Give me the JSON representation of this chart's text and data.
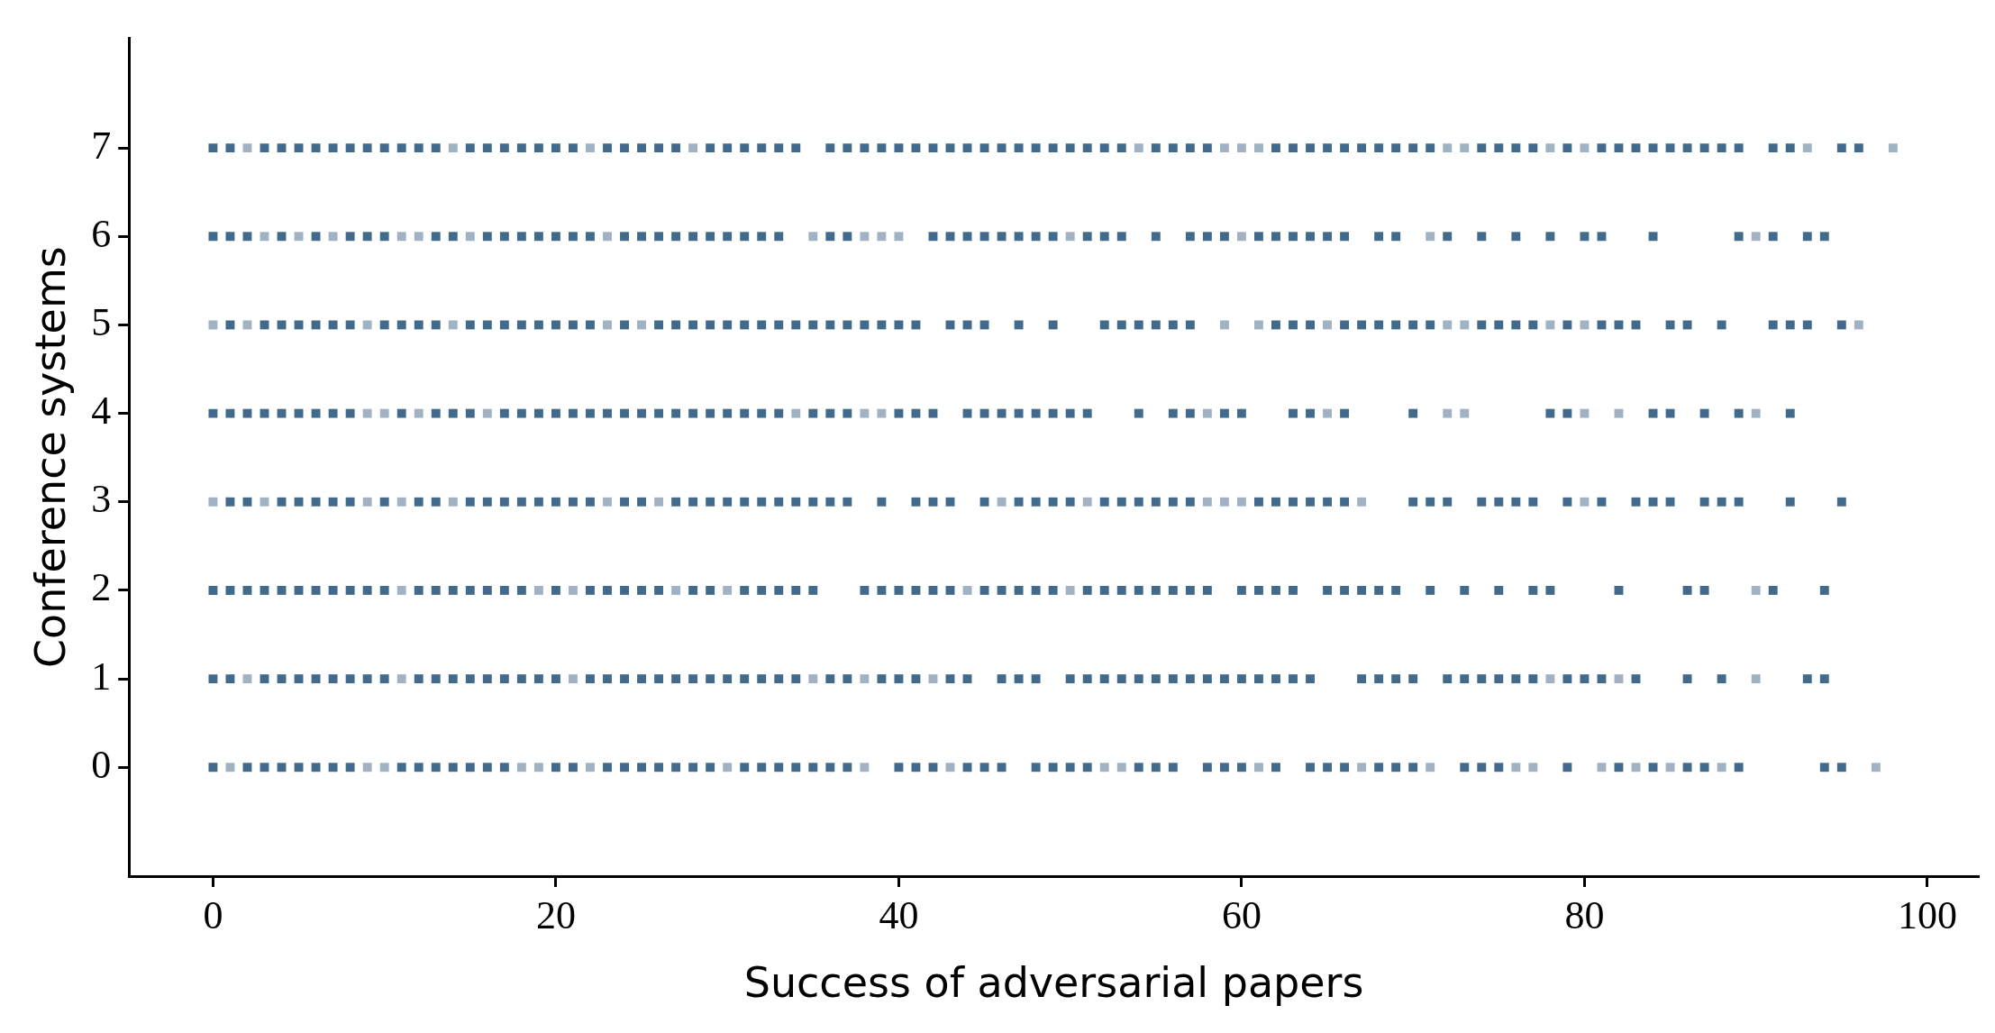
{
  "chart_data": {
    "type": "scatter",
    "xlabel": "Success of adversarial papers",
    "ylabel": "Conference systems",
    "xlim": [
      -4.9,
      103
    ],
    "xticks": [
      0,
      20,
      40,
      60,
      80,
      100
    ],
    "ylim": [
      -1.23,
      8.24
    ],
    "yticks": [
      0,
      1,
      2,
      3,
      4,
      5,
      6,
      7
    ],
    "grid": false,
    "legend": false,
    "marker": "square",
    "series": [
      {
        "color": "#426a8c",
        "x": [
          0,
          2,
          3,
          4,
          5,
          6,
          7,
          8,
          11,
          12,
          13,
          14,
          15,
          16,
          17,
          20,
          21,
          23,
          24,
          25,
          26,
          27,
          28,
          29,
          31,
          32,
          33,
          34,
          35,
          36,
          37,
          40,
          41,
          42,
          44,
          45,
          46,
          48,
          49,
          50,
          51,
          54,
          55,
          56,
          58,
          59,
          60,
          62,
          64,
          65,
          66,
          68,
          69,
          70,
          73,
          74,
          75,
          79,
          82,
          84,
          86,
          87,
          89,
          94,
          95
        ],
        "values": [
          0,
          0,
          0,
          0,
          0,
          0,
          0,
          0,
          0,
          0,
          0,
          0,
          0,
          0,
          0,
          0,
          0,
          0,
          0,
          0,
          0,
          0,
          0,
          0,
          0,
          0,
          0,
          0,
          0,
          0,
          0,
          0,
          0,
          0,
          0,
          0,
          0,
          0,
          0,
          0,
          0,
          0,
          0,
          0,
          0,
          0,
          0,
          0,
          0,
          0,
          0,
          0,
          0,
          0,
          0,
          0,
          0,
          0,
          0,
          0,
          0,
          0,
          0,
          0,
          0
        ]
      },
      {
        "color": "#a0b2c4",
        "x": [
          1,
          9,
          10,
          18,
          19,
          22,
          30,
          38,
          43,
          52,
          53,
          61,
          67,
          71,
          76,
          77,
          81,
          83,
          85,
          88,
          97
        ],
        "values": [
          0,
          0,
          0,
          0,
          0,
          0,
          0,
          0,
          0,
          0,
          0,
          0,
          0,
          0,
          0,
          0,
          0,
          0,
          0,
          0,
          0
        ]
      },
      {
        "color": "#426a8c",
        "x": [
          0,
          1,
          3,
          4,
          5,
          6,
          7,
          8,
          9,
          10,
          12,
          13,
          14,
          15,
          16,
          17,
          18,
          19,
          20,
          22,
          23,
          24,
          25,
          26,
          27,
          28,
          29,
          30,
          31,
          32,
          33,
          34,
          36,
          37,
          39,
          40,
          41,
          43,
          44,
          46,
          47,
          48,
          50,
          51,
          52,
          53,
          54,
          55,
          56,
          57,
          58,
          59,
          60,
          61,
          62,
          63,
          64,
          67,
          68,
          69,
          70,
          72,
          73,
          74,
          75,
          76,
          77,
          79,
          80,
          81,
          83,
          86,
          88,
          93,
          94
        ],
        "values": [
          1,
          1,
          1,
          1,
          1,
          1,
          1,
          1,
          1,
          1,
          1,
          1,
          1,
          1,
          1,
          1,
          1,
          1,
          1,
          1,
          1,
          1,
          1,
          1,
          1,
          1,
          1,
          1,
          1,
          1,
          1,
          1,
          1,
          1,
          1,
          1,
          1,
          1,
          1,
          1,
          1,
          1,
          1,
          1,
          1,
          1,
          1,
          1,
          1,
          1,
          1,
          1,
          1,
          1,
          1,
          1,
          1,
          1,
          1,
          1,
          1,
          1,
          1,
          1,
          1,
          1,
          1,
          1,
          1,
          1,
          1,
          1,
          1,
          1,
          1
        ]
      },
      {
        "color": "#a0b2c4",
        "x": [
          2,
          11,
          21,
          35,
          38,
          42,
          78,
          82,
          90
        ],
        "values": [
          1,
          1,
          1,
          1,
          1,
          1,
          1,
          1,
          1
        ]
      },
      {
        "color": "#426a8c",
        "x": [
          0,
          1,
          2,
          3,
          4,
          5,
          6,
          7,
          8,
          9,
          10,
          12,
          13,
          14,
          15,
          16,
          17,
          18,
          20,
          22,
          23,
          24,
          25,
          26,
          28,
          29,
          31,
          32,
          33,
          34,
          35,
          38,
          39,
          40,
          41,
          42,
          43,
          45,
          46,
          47,
          48,
          49,
          51,
          52,
          53,
          54,
          55,
          56,
          57,
          58,
          60,
          61,
          62,
          63,
          65,
          66,
          67,
          68,
          69,
          71,
          73,
          75,
          77,
          78,
          82,
          86,
          87,
          91,
          94
        ],
        "values": [
          2,
          2,
          2,
          2,
          2,
          2,
          2,
          2,
          2,
          2,
          2,
          2,
          2,
          2,
          2,
          2,
          2,
          2,
          2,
          2,
          2,
          2,
          2,
          2,
          2,
          2,
          2,
          2,
          2,
          2,
          2,
          2,
          2,
          2,
          2,
          2,
          2,
          2,
          2,
          2,
          2,
          2,
          2,
          2,
          2,
          2,
          2,
          2,
          2,
          2,
          2,
          2,
          2,
          2,
          2,
          2,
          2,
          2,
          2,
          2,
          2,
          2,
          2,
          2,
          2,
          2,
          2,
          2,
          2
        ]
      },
      {
        "color": "#a0b2c4",
        "x": [
          11,
          19,
          21,
          27,
          30,
          44,
          50,
          90
        ],
        "values": [
          2,
          2,
          2,
          2,
          2,
          2,
          2,
          2
        ]
      },
      {
        "color": "#426a8c",
        "x": [
          1,
          2,
          4,
          5,
          6,
          7,
          8,
          10,
          12,
          13,
          15,
          16,
          17,
          18,
          19,
          20,
          21,
          22,
          24,
          25,
          27,
          28,
          29,
          30,
          31,
          32,
          33,
          34,
          35,
          36,
          37,
          39,
          41,
          42,
          43,
          45,
          47,
          48,
          49,
          50,
          52,
          53,
          54,
          55,
          56,
          57,
          61,
          62,
          63,
          64,
          65,
          66,
          70,
          71,
          72,
          74,
          75,
          76,
          77,
          79,
          81,
          83,
          84,
          85,
          87,
          88,
          89,
          92,
          95
        ],
        "values": [
          3,
          3,
          3,
          3,
          3,
          3,
          3,
          3,
          3,
          3,
          3,
          3,
          3,
          3,
          3,
          3,
          3,
          3,
          3,
          3,
          3,
          3,
          3,
          3,
          3,
          3,
          3,
          3,
          3,
          3,
          3,
          3,
          3,
          3,
          3,
          3,
          3,
          3,
          3,
          3,
          3,
          3,
          3,
          3,
          3,
          3,
          3,
          3,
          3,
          3,
          3,
          3,
          3,
          3,
          3,
          3,
          3,
          3,
          3,
          3,
          3,
          3,
          3,
          3,
          3,
          3,
          3,
          3,
          3
        ]
      },
      {
        "color": "#a0b2c4",
        "x": [
          0,
          3,
          9,
          11,
          14,
          23,
          26,
          46,
          51,
          58,
          59,
          60,
          67,
          80
        ],
        "values": [
          3,
          3,
          3,
          3,
          3,
          3,
          3,
          3,
          3,
          3,
          3,
          3,
          3,
          3
        ]
      },
      {
        "color": "#426a8c",
        "x": [
          0,
          1,
          2,
          3,
          4,
          5,
          6,
          7,
          8,
          11,
          13,
          14,
          15,
          17,
          18,
          19,
          20,
          21,
          22,
          23,
          24,
          25,
          26,
          27,
          28,
          29,
          30,
          31,
          32,
          33,
          35,
          36,
          37,
          40,
          41,
          42,
          44,
          45,
          46,
          47,
          48,
          49,
          50,
          51,
          54,
          56,
          57,
          59,
          60,
          63,
          64,
          66,
          70,
          78,
          79,
          84,
          85,
          87,
          89,
          92
        ],
        "values": [
          4,
          4,
          4,
          4,
          4,
          4,
          4,
          4,
          4,
          4,
          4,
          4,
          4,
          4,
          4,
          4,
          4,
          4,
          4,
          4,
          4,
          4,
          4,
          4,
          4,
          4,
          4,
          4,
          4,
          4,
          4,
          4,
          4,
          4,
          4,
          4,
          4,
          4,
          4,
          4,
          4,
          4,
          4,
          4,
          4,
          4,
          4,
          4,
          4,
          4,
          4,
          4,
          4,
          4,
          4,
          4,
          4,
          4,
          4,
          4
        ]
      },
      {
        "color": "#a0b2c4",
        "x": [
          9,
          10,
          12,
          16,
          34,
          38,
          39,
          58,
          65,
          72,
          73,
          80,
          82,
          90
        ],
        "values": [
          4,
          4,
          4,
          4,
          4,
          4,
          4,
          4,
          4,
          4,
          4,
          4,
          4,
          4
        ]
      },
      {
        "color": "#426a8c",
        "x": [
          1,
          3,
          4,
          5,
          6,
          7,
          8,
          10,
          11,
          12,
          13,
          15,
          16,
          17,
          18,
          19,
          20,
          21,
          22,
          24,
          26,
          27,
          28,
          29,
          30,
          31,
          32,
          33,
          34,
          35,
          36,
          37,
          38,
          39,
          40,
          41,
          43,
          44,
          45,
          47,
          49,
          52,
          53,
          54,
          55,
          56,
          57,
          62,
          63,
          64,
          66,
          67,
          68,
          69,
          70,
          71,
          74,
          75,
          76,
          77,
          79,
          81,
          82,
          83,
          85,
          86,
          88,
          91,
          92,
          93,
          95
        ],
        "values": [
          5,
          5,
          5,
          5,
          5,
          5,
          5,
          5,
          5,
          5,
          5,
          5,
          5,
          5,
          5,
          5,
          5,
          5,
          5,
          5,
          5,
          5,
          5,
          5,
          5,
          5,
          5,
          5,
          5,
          5,
          5,
          5,
          5,
          5,
          5,
          5,
          5,
          5,
          5,
          5,
          5,
          5,
          5,
          5,
          5,
          5,
          5,
          5,
          5,
          5,
          5,
          5,
          5,
          5,
          5,
          5,
          5,
          5,
          5,
          5,
          5,
          5,
          5,
          5,
          5,
          5,
          5,
          5,
          5,
          5,
          5
        ]
      },
      {
        "color": "#a0b2c4",
        "x": [
          0,
          2,
          9,
          14,
          23,
          25,
          59,
          61,
          65,
          72,
          73,
          78,
          80,
          96
        ],
        "values": [
          5,
          5,
          5,
          5,
          5,
          5,
          5,
          5,
          5,
          5,
          5,
          5,
          5,
          5
        ]
      },
      {
        "color": "#426a8c",
        "x": [
          0,
          1,
          2,
          4,
          6,
          8,
          9,
          10,
          13,
          14,
          16,
          17,
          18,
          19,
          20,
          21,
          22,
          24,
          25,
          26,
          27,
          28,
          29,
          30,
          31,
          32,
          33,
          36,
          37,
          42,
          43,
          44,
          45,
          46,
          47,
          48,
          49,
          51,
          52,
          53,
          55,
          57,
          58,
          59,
          61,
          62,
          63,
          64,
          65,
          66,
          68,
          69,
          72,
          74,
          76,
          78,
          80,
          81,
          84,
          89,
          91,
          93,
          94
        ],
        "values": [
          6,
          6,
          6,
          6,
          6,
          6,
          6,
          6,
          6,
          6,
          6,
          6,
          6,
          6,
          6,
          6,
          6,
          6,
          6,
          6,
          6,
          6,
          6,
          6,
          6,
          6,
          6,
          6,
          6,
          6,
          6,
          6,
          6,
          6,
          6,
          6,
          6,
          6,
          6,
          6,
          6,
          6,
          6,
          6,
          6,
          6,
          6,
          6,
          6,
          6,
          6,
          6,
          6,
          6,
          6,
          6,
          6,
          6,
          6,
          6,
          6,
          6,
          6
        ]
      },
      {
        "color": "#a0b2c4",
        "x": [
          3,
          5,
          7,
          11,
          12,
          15,
          23,
          35,
          38,
          39,
          40,
          50,
          60,
          71,
          90
        ],
        "values": [
          6,
          6,
          6,
          6,
          6,
          6,
          6,
          6,
          6,
          6,
          6,
          6,
          6,
          6,
          6
        ]
      },
      {
        "color": "#426a8c",
        "x": [
          0,
          1,
          3,
          4,
          5,
          6,
          7,
          8,
          9,
          10,
          11,
          12,
          13,
          15,
          16,
          17,
          18,
          19,
          20,
          21,
          23,
          24,
          25,
          26,
          27,
          29,
          30,
          31,
          32,
          33,
          34,
          36,
          37,
          38,
          39,
          40,
          41,
          42,
          43,
          44,
          45,
          46,
          47,
          48,
          49,
          50,
          51,
          52,
          53,
          55,
          56,
          57,
          58,
          62,
          63,
          64,
          65,
          66,
          67,
          68,
          69,
          70,
          71,
          74,
          75,
          76,
          77,
          79,
          81,
          82,
          83,
          84,
          85,
          86,
          87,
          88,
          89,
          91,
          92,
          95,
          96
        ],
        "values": [
          7,
          7,
          7,
          7,
          7,
          7,
          7,
          7,
          7,
          7,
          7,
          7,
          7,
          7,
          7,
          7,
          7,
          7,
          7,
          7,
          7,
          7,
          7,
          7,
          7,
          7,
          7,
          7,
          7,
          7,
          7,
          7,
          7,
          7,
          7,
          7,
          7,
          7,
          7,
          7,
          7,
          7,
          7,
          7,
          7,
          7,
          7,
          7,
          7,
          7,
          7,
          7,
          7,
          7,
          7,
          7,
          7,
          7,
          7,
          7,
          7,
          7,
          7,
          7,
          7,
          7,
          7,
          7,
          7,
          7,
          7,
          7,
          7,
          7,
          7,
          7,
          7,
          7,
          7,
          7,
          7
        ]
      },
      {
        "color": "#a0b2c4",
        "x": [
          2,
          14,
          22,
          28,
          54,
          59,
          60,
          61,
          72,
          73,
          78,
          80,
          93,
          98
        ],
        "values": [
          7,
          7,
          7,
          7,
          7,
          7,
          7,
          7,
          7,
          7,
          7,
          7,
          7,
          7
        ]
      }
    ]
  }
}
